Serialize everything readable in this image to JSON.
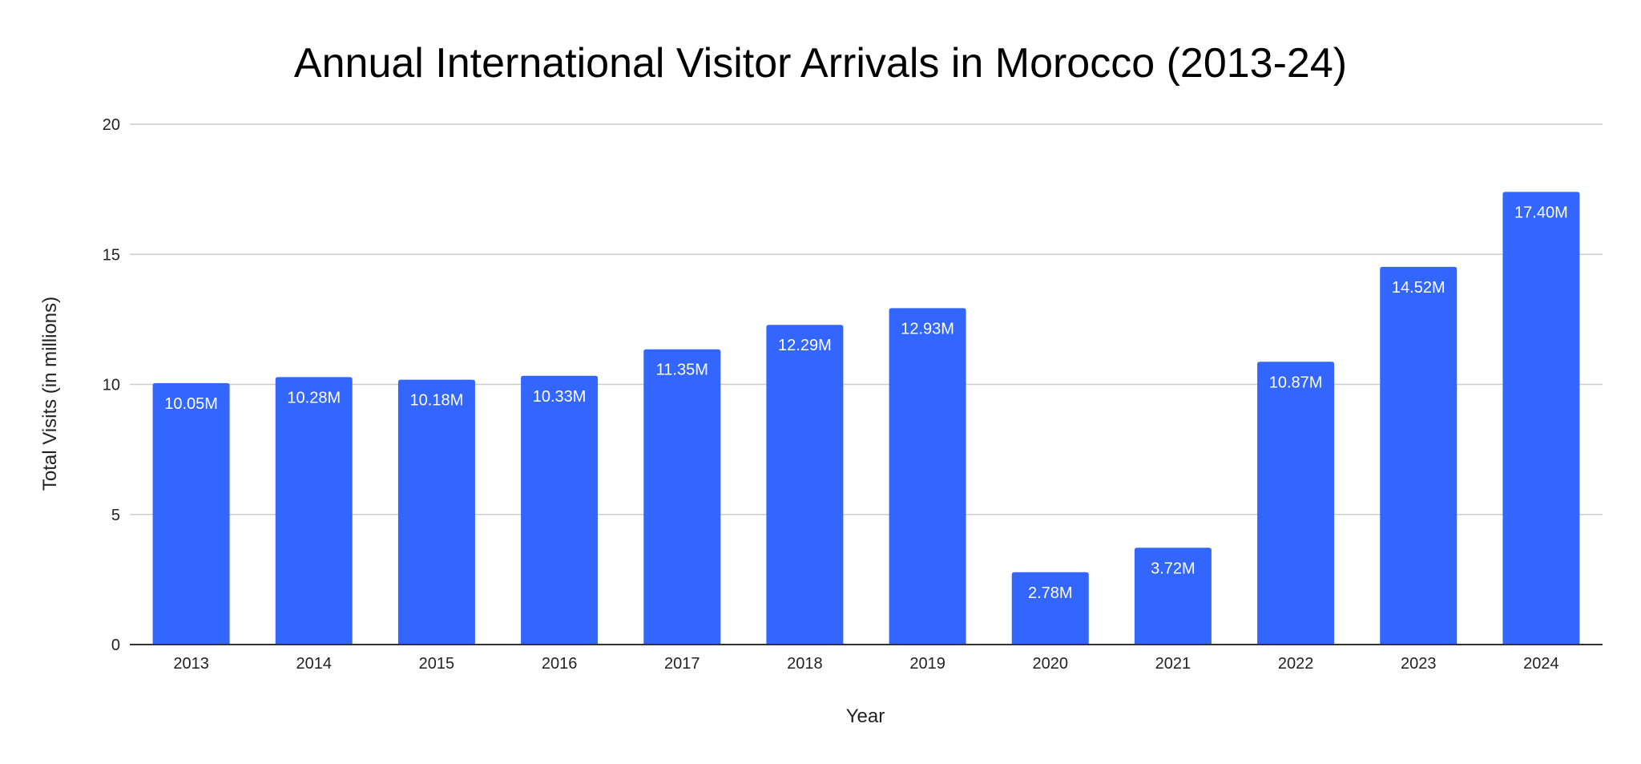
{
  "chart_data": {
    "type": "bar",
    "title": "Annual International Visitor Arrivals in Morocco (2013-24)",
    "xlabel": "Year",
    "ylabel": "Total Visits (in millions)",
    "categories": [
      "2013",
      "2014",
      "2015",
      "2016",
      "2017",
      "2018",
      "2019",
      "2020",
      "2021",
      "2022",
      "2023",
      "2024"
    ],
    "values": [
      10.05,
      10.28,
      10.18,
      10.33,
      11.35,
      12.29,
      12.93,
      2.78,
      3.72,
      10.87,
      14.52,
      17.4
    ],
    "data_labels": [
      "10.05M",
      "10.28M",
      "10.18M",
      "10.33M",
      "11.35M",
      "12.29M",
      "12.93M",
      "2.78M",
      "3.72M",
      "10.87M",
      "14.52M",
      "17.40M"
    ],
    "ylim": [
      0,
      20
    ],
    "yticks": [
      0,
      5,
      10,
      15,
      20
    ],
    "grid": true,
    "legend": "none",
    "bar_color": "#3366ff"
  }
}
